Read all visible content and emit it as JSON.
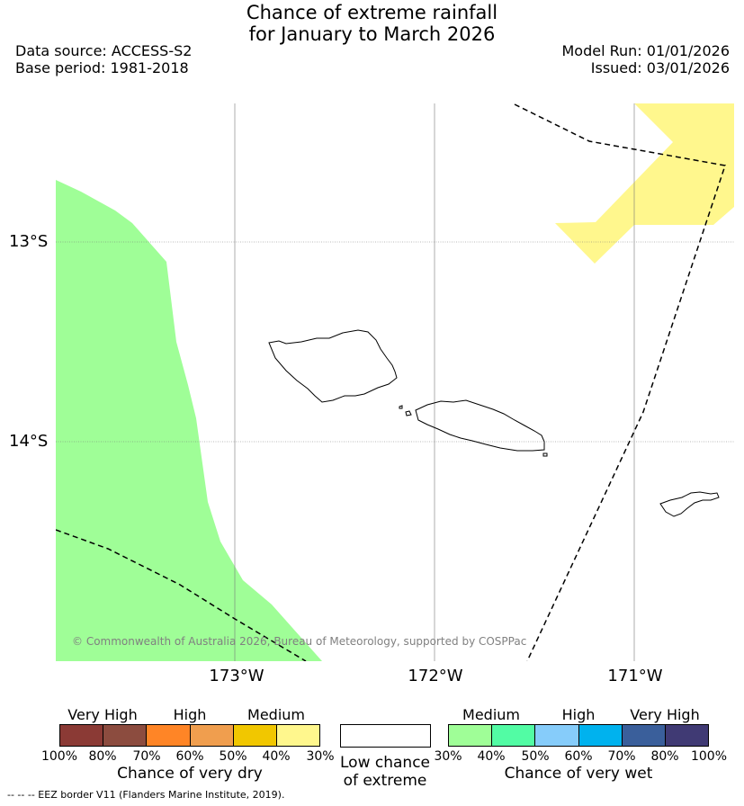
{
  "title": {
    "line1": "Chance of extreme rainfall",
    "line2": "for January to March 2026"
  },
  "meta": {
    "data_source": "Data source: ACCESS-S2",
    "base_period": "Base period: 1981-2018",
    "model_run": "Model Run: 01/01/2026",
    "issued": "Issued: 03/01/2026"
  },
  "map": {
    "lon_labels": [
      "173°W",
      "172°W",
      "171°W"
    ],
    "lat_labels": [
      "13°S",
      "14°S"
    ],
    "copyright": "© Commonwealth of Australia 2026, Bureau of Meteorology, supported by COSPPac",
    "colors": {
      "wet_30_40": "#9ffe97",
      "dry_30_40": "#fff78d",
      "coast": "#000000"
    }
  },
  "legend": {
    "dry": {
      "categories": [
        "Very High",
        "High",
        "Medium"
      ],
      "ticks": [
        "100%",
        "80%",
        "70%",
        "60%",
        "50%",
        "40%",
        "30%"
      ],
      "colors": [
        "#8b3a35",
        "#8c4c3f",
        "#ff8526",
        "#f09e4e",
        "#f1c700",
        "#fff78d"
      ],
      "caption": "Chance of very dry"
    },
    "low": {
      "line1": "Low chance",
      "line2": "of extreme"
    },
    "wet": {
      "categories": [
        "Medium",
        "High",
        "Very High"
      ],
      "ticks": [
        "30%",
        "40%",
        "50%",
        "60%",
        "70%",
        "80%",
        "100%"
      ],
      "colors": [
        "#9ffe97",
        "#52fca4",
        "#86ccfa",
        "#00b2ee",
        "#3a5f9b",
        "#403a74"
      ],
      "caption": "Chance of very wet"
    }
  },
  "footnote": "-- -- -- EEZ border V11 (Flanders Marine Institute, 2019)."
}
